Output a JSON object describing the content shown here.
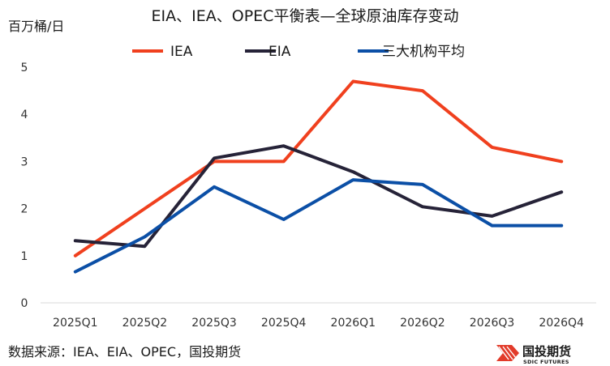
{
  "chart_data": {
    "type": "line",
    "title": "EIA、IEA、OPEC平衡表—全球原油库存变动",
    "ylabel": "百万桶/日",
    "xlabel": "",
    "categories": [
      "2025Q1",
      "2025Q2",
      "2025Q3",
      "2025Q4",
      "2026Q1",
      "2026Q2",
      "2026Q3",
      "2026Q4"
    ],
    "ylim": [
      0,
      5
    ],
    "yticks": [
      0,
      1,
      2,
      3,
      4,
      5
    ],
    "grid": false,
    "legend_position": "top",
    "series": [
      {
        "name": "IEA",
        "color": "#f0401e",
        "values": [
          1.0,
          2.0,
          3.0,
          3.0,
          4.7,
          4.5,
          3.3,
          3.0
        ]
      },
      {
        "name": "EIA",
        "color": "#262338",
        "values": [
          1.32,
          1.2,
          3.07,
          3.33,
          2.78,
          2.04,
          1.84,
          2.35
        ]
      },
      {
        "name": "三大机构平均",
        "color": "#0b4fa6",
        "values": [
          0.66,
          1.4,
          2.46,
          1.77,
          2.61,
          2.51,
          1.64,
          1.64
        ]
      }
    ]
  },
  "source": "数据来源：IEA、EIA、OPEC，国投期货",
  "brand": {
    "name_cn": "国投期货",
    "name_en": "SDIC FUTURES"
  }
}
